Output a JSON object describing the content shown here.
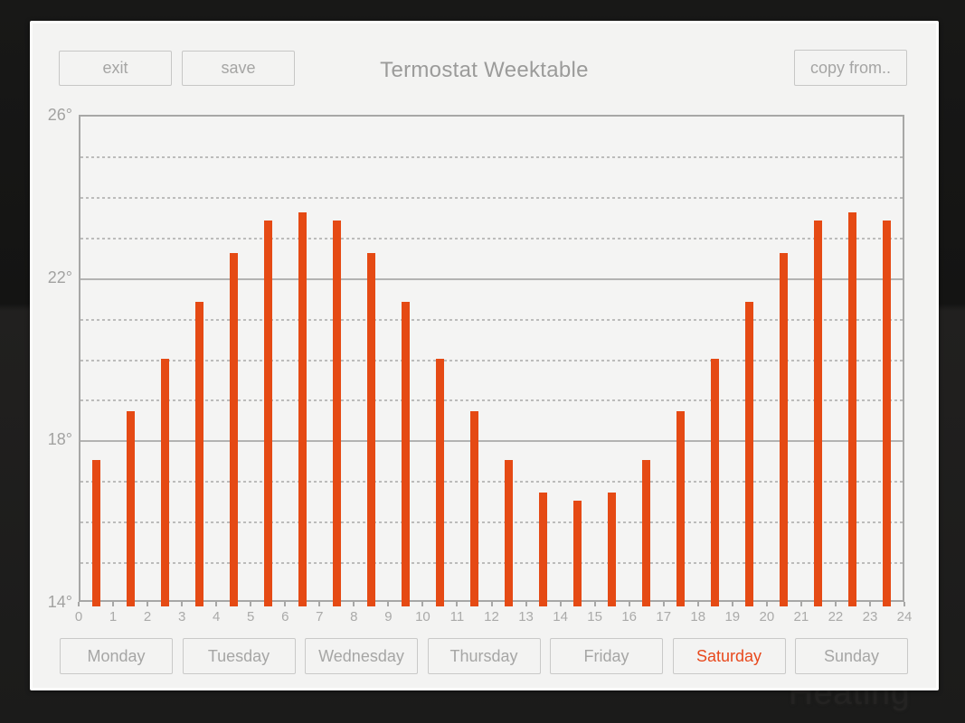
{
  "header": {
    "exit_label": "exit",
    "save_label": "save",
    "title": "Termostat Weektable",
    "copy_from_label": "copy from.."
  },
  "background": {
    "ghost_text": "Heating"
  },
  "chart_data": {
    "type": "bar",
    "x": [
      0,
      1,
      2,
      3,
      4,
      5,
      6,
      7,
      8,
      9,
      10,
      11,
      12,
      13,
      14,
      15,
      16,
      17,
      18,
      19,
      20,
      21,
      22,
      23
    ],
    "values": [
      17.5,
      18.7,
      20.0,
      21.4,
      22.6,
      23.4,
      23.6,
      23.4,
      22.6,
      21.4,
      20.0,
      18.7,
      17.5,
      16.7,
      16.5,
      16.7,
      17.5,
      18.7,
      20.0,
      21.4,
      22.6,
      23.4,
      23.6,
      23.4
    ],
    "title": "Termostat Weektable",
    "xlabel": "",
    "ylabel": "",
    "ylim": [
      14,
      26
    ],
    "xlim": [
      0,
      24
    ],
    "y_tick_labels": [
      "26°",
      "22°",
      "18°",
      "14°"
    ],
    "y_solid_gridlines": [
      26,
      22,
      18,
      14
    ],
    "y_dashed_gridlines": [
      25,
      24,
      23,
      21,
      20,
      19,
      17,
      16,
      15
    ],
    "x_tick_labels": [
      "0",
      "1",
      "2",
      "3",
      "4",
      "5",
      "6",
      "7",
      "8",
      "9",
      "10",
      "11",
      "12",
      "13",
      "14",
      "15",
      "16",
      "17",
      "18",
      "19",
      "20",
      "21",
      "22",
      "23",
      "24"
    ],
    "bar_color": "#e54a14",
    "grid": true,
    "legend": false
  },
  "days": {
    "selected_color": "#e8491d",
    "items": [
      {
        "label": "Monday",
        "selected": false
      },
      {
        "label": "Tuesday",
        "selected": false
      },
      {
        "label": "Wednesday",
        "selected": false
      },
      {
        "label": "Thursday",
        "selected": false
      },
      {
        "label": "Friday",
        "selected": false
      },
      {
        "label": "Saturday",
        "selected": true
      },
      {
        "label": "Sunday",
        "selected": false
      }
    ]
  }
}
